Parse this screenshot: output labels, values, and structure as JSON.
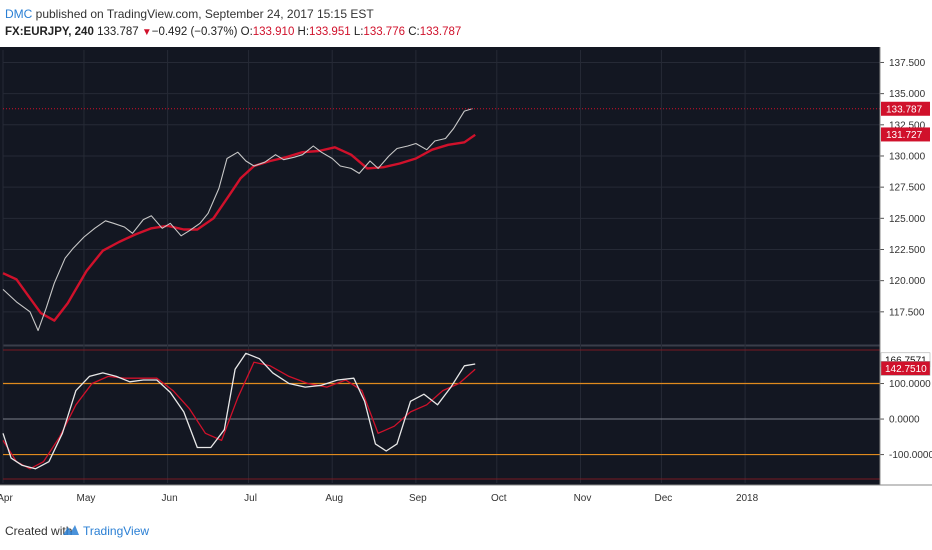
{
  "header": {
    "author": "DMC",
    "published": " published on TradingView.com, September 24, 2017 15:15 EST",
    "symbol": "FX:EURJPY, 240",
    "last": "133.787",
    "change": "−0.492 (−0.37%)",
    "open_label": "O:",
    "open": "133.910",
    "high_label": "H:",
    "high": "133.951",
    "low_label": "L:",
    "low": "133.776",
    "close_label": "C:",
    "close": "133.787"
  },
  "footer": {
    "created": "Created with",
    "brand": "TradingView"
  },
  "colors": {
    "background": "#131722",
    "price": "#c8c8c8",
    "moving_average": "#d0112b",
    "osc_fast": "#e8e8e8",
    "osc_slow": "#d0112b",
    "level_lines": "#e08a1e",
    "last_price_tag": "#d0112b",
    "ma_tag": "#d0112b"
  },
  "chart_data": [
    {
      "type": "line",
      "panel": "price",
      "y_ticks": [
        "137.500",
        "135.000",
        "132.500",
        "130.000",
        "127.500",
        "125.000",
        "122.500",
        "120.000",
        "117.500"
      ],
      "ylim": [
        115.0,
        138.5
      ],
      "x_ticks": [
        "Apr",
        "May",
        "Jun",
        "Jul",
        "Aug",
        "Sep",
        "Oct",
        "Nov",
        "Dec",
        "2018"
      ],
      "xlim": [
        "2017-04-01",
        "2018-02-20"
      ],
      "last_price_label": "133.787",
      "ma_label": "131.727",
      "series": [
        {
          "values_x": [
            "2017-04-01",
            "2017-04-06",
            "2017-04-11",
            "2017-04-14",
            "2017-04-17",
            "2017-04-20",
            "2017-04-24",
            "2017-04-27",
            "2017-05-01",
            "2017-05-05",
            "2017-05-09",
            "2017-05-12",
            "2017-05-16",
            "2017-05-19",
            "2017-05-23",
            "2017-05-26",
            "2017-05-30",
            "2017-06-02",
            "2017-06-06",
            "2017-06-09",
            "2017-06-13",
            "2017-06-16",
            "2017-06-20",
            "2017-06-23",
            "2017-06-27",
            "2017-06-30",
            "2017-07-03",
            "2017-07-07",
            "2017-07-11",
            "2017-07-14",
            "2017-07-18",
            "2017-07-21",
            "2017-07-25",
            "2017-07-28",
            "2017-08-01",
            "2017-08-04",
            "2017-08-08",
            "2017-08-11",
            "2017-08-15",
            "2017-08-18",
            "2017-08-22",
            "2017-08-25",
            "2017-08-29",
            "2017-09-01",
            "2017-09-05",
            "2017-09-08",
            "2017-09-12",
            "2017-09-15",
            "2017-09-19",
            "2017-09-22"
          ],
          "values": [
            119.3,
            118.3,
            117.5,
            116.0,
            117.8,
            119.8,
            121.8,
            122.6,
            123.5,
            124.2,
            124.8,
            124.6,
            124.3,
            123.8,
            124.9,
            125.2,
            124.2,
            124.6,
            123.6,
            124.0,
            124.6,
            125.4,
            127.4,
            129.8,
            130.3,
            129.6,
            129.2,
            129.5,
            130.1,
            129.7,
            129.9,
            130.1,
            130.8,
            130.3,
            129.8,
            129.2,
            129.0,
            128.6,
            129.6,
            129.0,
            130.0,
            130.6,
            130.8,
            131.0,
            130.5,
            131.2,
            131.4,
            132.2,
            133.6,
            133.8
          ]
        },
        {
          "values_x": [
            "2017-04-01",
            "2017-04-06",
            "2017-04-10",
            "2017-04-15",
            "2017-04-20",
            "2017-04-25",
            "2017-05-02",
            "2017-05-08",
            "2017-05-14",
            "2017-05-20",
            "2017-05-26",
            "2017-06-01",
            "2017-06-07",
            "2017-06-12",
            "2017-06-18",
            "2017-06-24",
            "2017-06-28",
            "2017-07-03",
            "2017-07-09",
            "2017-07-15",
            "2017-07-21",
            "2017-07-27",
            "2017-08-02",
            "2017-08-08",
            "2017-08-14",
            "2017-08-20",
            "2017-08-26",
            "2017-09-01",
            "2017-09-07",
            "2017-09-13",
            "2017-09-19",
            "2017-09-23"
          ],
          "values": [
            120.6,
            120.1,
            118.9,
            117.4,
            116.8,
            118.2,
            120.8,
            122.4,
            123.1,
            123.7,
            124.2,
            124.4,
            124.1,
            124.1,
            125.0,
            126.9,
            128.2,
            129.2,
            129.6,
            129.9,
            130.3,
            130.4,
            130.7,
            130.1,
            129.0,
            129.1,
            129.4,
            129.8,
            130.5,
            130.9,
            131.1,
            131.7
          ]
        }
      ]
    },
    {
      "type": "line",
      "panel": "oscillator",
      "y_ticks": [
        "100.0000",
        "0.0000",
        "-100.0000"
      ],
      "ylim": [
        -180,
        200
      ],
      "levels": [
        100,
        -100
      ],
      "fast_label": "166.7571",
      "slow_label": "142.7510",
      "series": [
        {
          "values_x": [
            "2017-04-01",
            "2017-04-04",
            "2017-04-08",
            "2017-04-13",
            "2017-04-18",
            "2017-04-23",
            "2017-04-28",
            "2017-05-03",
            "2017-05-08",
            "2017-05-13",
            "2017-05-18",
            "2017-05-23",
            "2017-05-28",
            "2017-06-02",
            "2017-06-07",
            "2017-06-12",
            "2017-06-17",
            "2017-06-22",
            "2017-06-26",
            "2017-06-30",
            "2017-07-05",
            "2017-07-10",
            "2017-07-16",
            "2017-07-22",
            "2017-07-28",
            "2017-08-03",
            "2017-08-09",
            "2017-08-13",
            "2017-08-17",
            "2017-08-21",
            "2017-08-25",
            "2017-08-30",
            "2017-09-04",
            "2017-09-09",
            "2017-09-14",
            "2017-09-19",
            "2017-09-23"
          ],
          "values": [
            -40,
            -110,
            -130,
            -140,
            -120,
            -40,
            80,
            120,
            130,
            120,
            105,
            110,
            110,
            75,
            20,
            -80,
            -80,
            -30,
            140,
            185,
            170,
            130,
            100,
            90,
            95,
            110,
            115,
            50,
            -70,
            -90,
            -70,
            50,
            70,
            40,
            90,
            150,
            155
          ]
        },
        {
          "values_x": [
            "2017-04-01",
            "2017-04-06",
            "2017-04-11",
            "2017-04-16",
            "2017-04-22",
            "2017-04-28",
            "2017-05-04",
            "2017-05-10",
            "2017-05-16",
            "2017-05-22",
            "2017-05-28",
            "2017-06-03",
            "2017-06-09",
            "2017-06-15",
            "2017-06-21",
            "2017-06-27",
            "2017-07-03",
            "2017-07-09",
            "2017-07-16",
            "2017-07-23",
            "2017-07-30",
            "2017-08-06",
            "2017-08-12",
            "2017-08-18",
            "2017-08-24",
            "2017-08-30",
            "2017-09-05",
            "2017-09-11",
            "2017-09-17",
            "2017-09-23"
          ],
          "values": [
            -60,
            -120,
            -140,
            -120,
            -50,
            40,
            100,
            120,
            115,
            115,
            115,
            80,
            30,
            -40,
            -60,
            60,
            160,
            150,
            120,
            100,
            90,
            110,
            80,
            -40,
            -20,
            20,
            40,
            80,
            100,
            140
          ]
        }
      ]
    }
  ]
}
